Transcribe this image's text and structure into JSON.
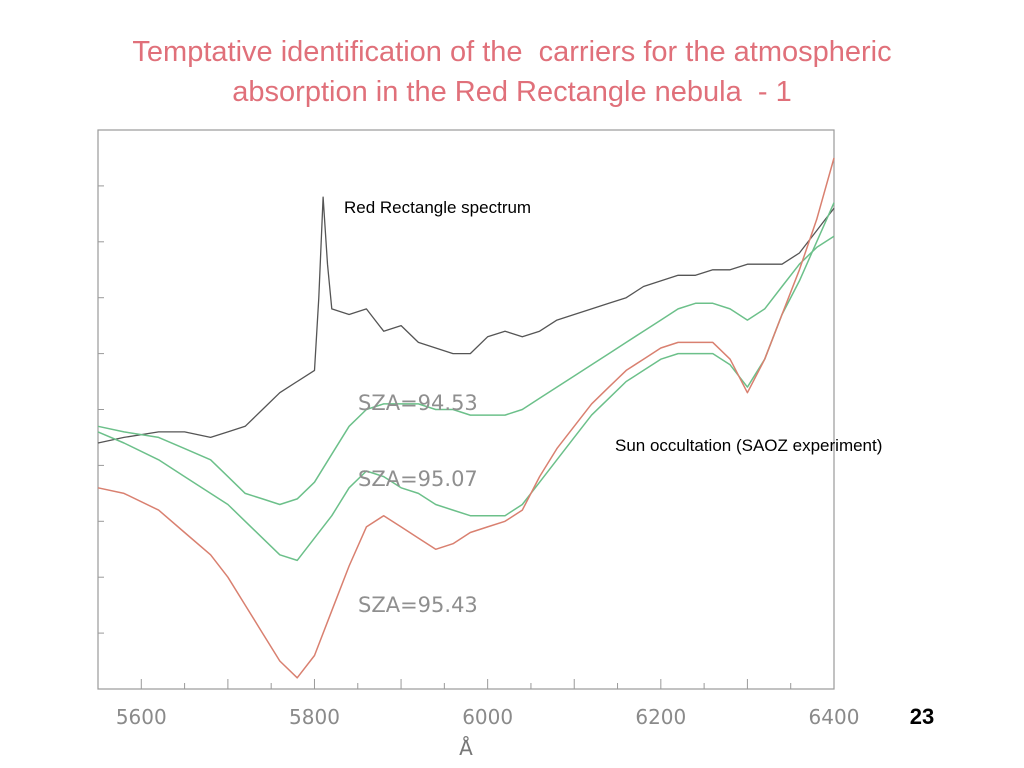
{
  "slide": {
    "title_line1": "Temptative identification of the  carriers for the atmospheric",
    "title_line2": "absorption in the Red Rectangle nebula  - 1",
    "page_number": "23",
    "title_color": "#e0707a"
  },
  "chart_data": {
    "type": "line",
    "title": "",
    "xlabel": "Å",
    "ylabel": "",
    "xlim": [
      5550,
      6400
    ],
    "x_ticks": [
      5600,
      5800,
      6000,
      6200,
      6400
    ],
    "grid": false,
    "annotations": [
      {
        "text": "Red Rectangle spectrum"
      },
      {
        "text": "Sun occultation (SAOZ experiment)"
      },
      {
        "text": "SZA=94.53"
      },
      {
        "text": "SZA=95.07"
      },
      {
        "text": "SZA=95.43"
      }
    ],
    "series": [
      {
        "color": "#555555",
        "x": [
          5550,
          5580,
          5620,
          5650,
          5680,
          5700,
          5720,
          5740,
          5760,
          5780,
          5800,
          5805,
          5810,
          5815,
          5820,
          5840,
          5860,
          5880,
          5900,
          5920,
          5940,
          5960,
          5980,
          6000,
          6020,
          6040,
          6060,
          6080,
          6100,
          6120,
          6140,
          6160,
          6180,
          6200,
          6220,
          6240,
          6260,
          6280,
          6300,
          6320,
          6340,
          6360,
          6380,
          6390,
          6400
        ],
        "y": [
          0.44,
          0.45,
          0.46,
          0.46,
          0.45,
          0.46,
          0.47,
          0.5,
          0.53,
          0.55,
          0.57,
          0.7,
          0.88,
          0.76,
          0.68,
          0.67,
          0.68,
          0.64,
          0.65,
          0.62,
          0.61,
          0.6,
          0.6,
          0.63,
          0.64,
          0.63,
          0.64,
          0.66,
          0.67,
          0.68,
          0.69,
          0.7,
          0.72,
          0.73,
          0.74,
          0.74,
          0.75,
          0.75,
          0.76,
          0.76,
          0.76,
          0.78,
          0.82,
          0.84,
          0.86
        ]
      },
      {
        "name": "SZA=94.53",
        "color": "#6cc08a",
        "x": [
          5550,
          5580,
          5620,
          5650,
          5680,
          5700,
          5720,
          5740,
          5760,
          5780,
          5800,
          5820,
          5840,
          5860,
          5880,
          5900,
          5920,
          5940,
          5960,
          5980,
          6000,
          6020,
          6040,
          6060,
          6080,
          6100,
          6120,
          6140,
          6160,
          6180,
          6200,
          6220,
          6240,
          6260,
          6280,
          6300,
          6320,
          6340,
          6360,
          6380,
          6400
        ],
        "y": [
          0.47,
          0.46,
          0.45,
          0.43,
          0.41,
          0.38,
          0.35,
          0.34,
          0.33,
          0.34,
          0.37,
          0.42,
          0.47,
          0.5,
          0.51,
          0.51,
          0.51,
          0.5,
          0.5,
          0.49,
          0.49,
          0.49,
          0.5,
          0.52,
          0.54,
          0.56,
          0.58,
          0.6,
          0.62,
          0.64,
          0.66,
          0.68,
          0.69,
          0.69,
          0.68,
          0.66,
          0.68,
          0.72,
          0.76,
          0.79,
          0.81
        ]
      },
      {
        "name": "SZA=95.07",
        "color": "#6cc08a",
        "x": [
          5550,
          5580,
          5620,
          5650,
          5680,
          5700,
          5720,
          5740,
          5760,
          5780,
          5800,
          5820,
          5840,
          5860,
          5880,
          5900,
          5920,
          5940,
          5960,
          5980,
          6000,
          6020,
          6040,
          6060,
          6080,
          6100,
          6120,
          6140,
          6160,
          6180,
          6200,
          6220,
          6240,
          6260,
          6280,
          6300,
          6320,
          6340,
          6360,
          6380,
          6400
        ],
        "y": [
          0.46,
          0.44,
          0.41,
          0.38,
          0.35,
          0.33,
          0.3,
          0.27,
          0.24,
          0.23,
          0.27,
          0.31,
          0.36,
          0.39,
          0.38,
          0.36,
          0.35,
          0.33,
          0.32,
          0.31,
          0.31,
          0.31,
          0.33,
          0.37,
          0.41,
          0.45,
          0.49,
          0.52,
          0.55,
          0.57,
          0.59,
          0.6,
          0.6,
          0.6,
          0.58,
          0.54,
          0.59,
          0.67,
          0.73,
          0.8,
          0.87
        ]
      },
      {
        "name": "SZA=95.43",
        "color": "#d98070",
        "x": [
          5550,
          5580,
          5620,
          5650,
          5680,
          5700,
          5720,
          5740,
          5760,
          5780,
          5800,
          5820,
          5840,
          5860,
          5880,
          5900,
          5920,
          5940,
          5960,
          5980,
          6000,
          6020,
          6040,
          6060,
          6080,
          6100,
          6120,
          6140,
          6160,
          6180,
          6200,
          6220,
          6240,
          6260,
          6280,
          6300,
          6320,
          6340,
          6360,
          6380,
          6400
        ],
        "y": [
          0.36,
          0.35,
          0.32,
          0.28,
          0.24,
          0.2,
          0.15,
          0.1,
          0.05,
          0.02,
          0.06,
          0.14,
          0.22,
          0.29,
          0.31,
          0.29,
          0.27,
          0.25,
          0.26,
          0.28,
          0.29,
          0.3,
          0.32,
          0.38,
          0.43,
          0.47,
          0.51,
          0.54,
          0.57,
          0.59,
          0.61,
          0.62,
          0.62,
          0.62,
          0.59,
          0.53,
          0.59,
          0.67,
          0.75,
          0.84,
          0.95
        ]
      }
    ]
  }
}
